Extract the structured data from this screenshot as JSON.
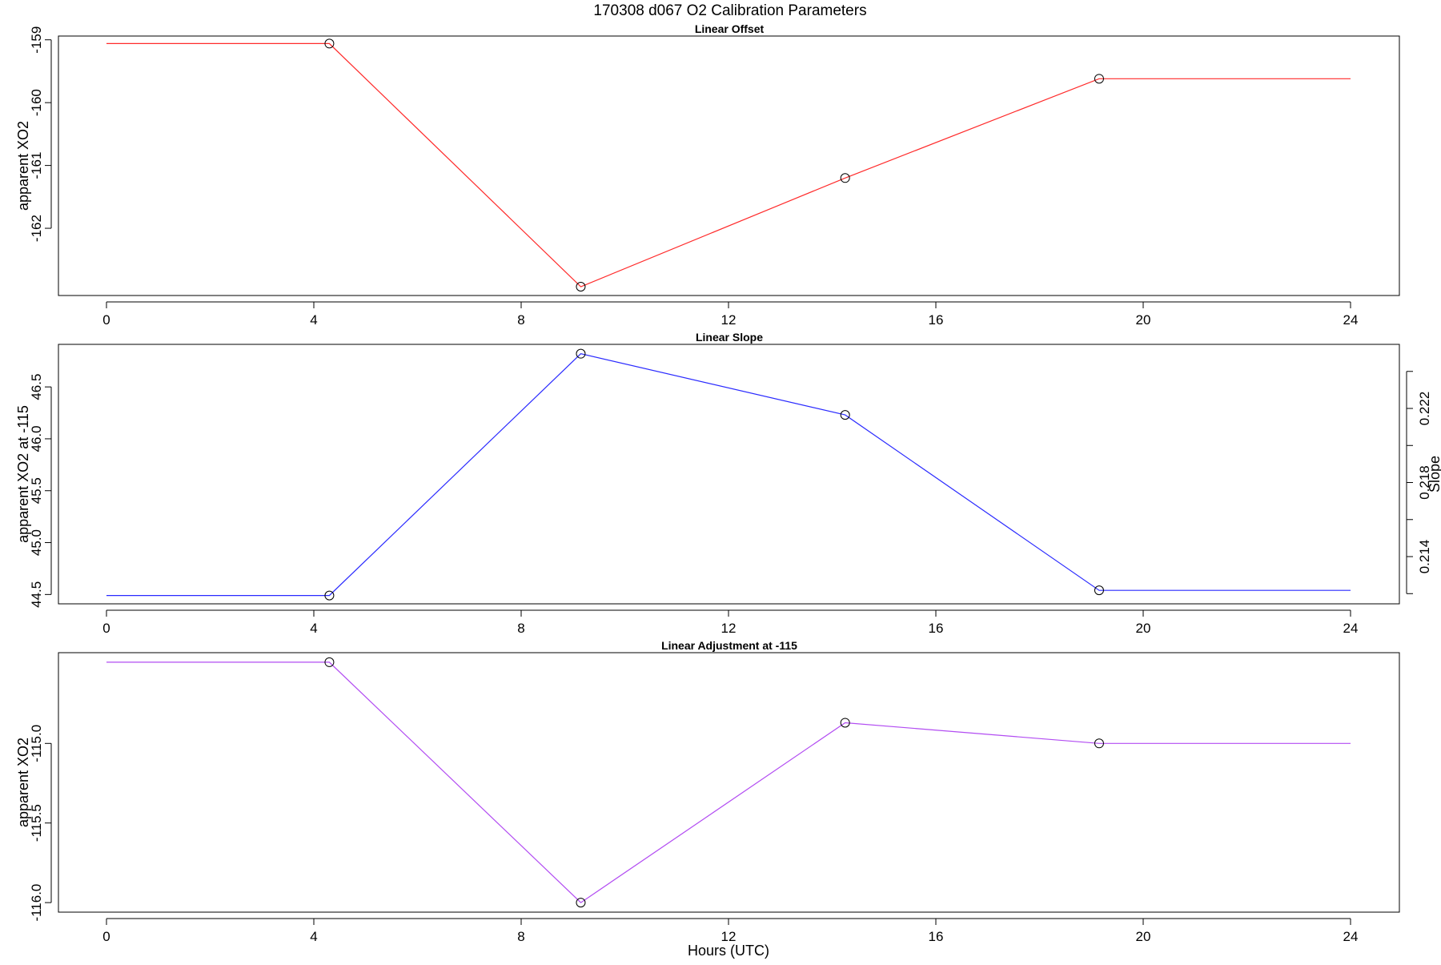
{
  "figure": {
    "title": "170308   d067   O2 Calibration Parameters",
    "xlabel": "Hours (UTC)"
  },
  "chart_data": [
    {
      "type": "line",
      "title": "Linear Offset",
      "xlabel": "",
      "ylabel": "apparent XO2",
      "color": "#ff2a2a",
      "xlim": [
        0,
        24
      ],
      "ylim": [
        -163.07,
        -158.94
      ],
      "x_ticks": [
        0,
        4,
        8,
        12,
        16,
        20,
        24
      ],
      "y_ticks": [
        -159,
        -160,
        -161,
        -162
      ],
      "y_tick_labels": [
        "-159",
        "-160",
        "-161",
        "-162"
      ],
      "line_x": [
        0,
        4.3,
        9.15,
        14.25,
        19.15,
        24
      ],
      "line_y": [
        -159.06,
        -159.06,
        -162.93,
        -161.2,
        -159.62,
        -159.62
      ],
      "points_x": [
        4.3,
        9.15,
        14.25,
        19.15
      ],
      "points_y": [
        -159.06,
        -162.93,
        -161.2,
        -159.62
      ]
    },
    {
      "type": "line",
      "title": "Linear Slope",
      "xlabel": "",
      "ylabel": "apparent XO2 at -115",
      "y2label": "Slope",
      "color": "#2a2aff",
      "xlim": [
        0,
        24
      ],
      "ylim": [
        44.41,
        46.91
      ],
      "x_ticks": [
        0,
        4,
        8,
        12,
        16,
        20,
        24
      ],
      "y_ticks": [
        44.5,
        45.0,
        45.5,
        46.0,
        46.5
      ],
      "y_tick_labels": [
        "44.5",
        "45.0",
        "45.5",
        "46.0",
        "46.5"
      ],
      "y2_ticks": [
        0.212,
        0.214,
        0.216,
        0.218,
        0.22,
        0.222,
        0.224
      ],
      "y2_tick_labels": [
        "",
        "0.214",
        "",
        "0.218",
        "",
        "0.222",
        ""
      ],
      "y2_lim": [
        0.21145,
        0.22546
      ],
      "line_x": [
        0,
        4.3,
        9.15,
        14.25,
        19.15,
        24
      ],
      "line_y": [
        44.49,
        44.49,
        46.82,
        46.23,
        44.54,
        44.54
      ],
      "points_x": [
        4.3,
        9.15,
        14.25,
        19.15
      ],
      "points_y": [
        44.49,
        46.82,
        46.23,
        44.54
      ]
    },
    {
      "type": "line",
      "title": "Linear Adjustment at -115",
      "xlabel": "Hours (UTC)",
      "ylabel": "apparent XO2",
      "color": "#b24cf2",
      "xlim": [
        0,
        24
      ],
      "ylim": [
        -116.06,
        -114.43
      ],
      "x_ticks": [
        0,
        4,
        8,
        12,
        16,
        20,
        24
      ],
      "y_ticks": [
        -115.0,
        -115.5,
        -116.0
      ],
      "y_tick_labels": [
        "-115.0",
        "-115.5",
        "-116.0"
      ],
      "line_x": [
        0,
        4.3,
        9.15,
        14.25,
        19.15,
        24
      ],
      "line_y": [
        -114.49,
        -114.49,
        -116.0,
        -114.87,
        -115.0,
        -115.0
      ],
      "points_x": [
        4.3,
        9.15,
        14.25,
        19.15
      ],
      "points_y": [
        -114.49,
        -116.0,
        -114.87,
        -115.0
      ]
    }
  ]
}
